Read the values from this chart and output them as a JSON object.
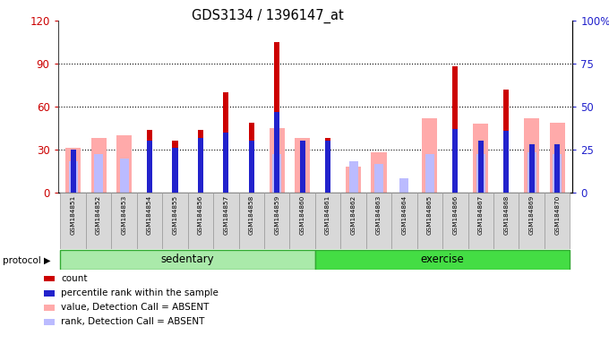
{
  "title": "GDS3134 / 1396147_at",
  "samples": [
    "GSM184851",
    "GSM184852",
    "GSM184853",
    "GSM184854",
    "GSM184855",
    "GSM184856",
    "GSM184857",
    "GSM184858",
    "GSM184859",
    "GSM184860",
    "GSM184861",
    "GSM184862",
    "GSM184863",
    "GSM184864",
    "GSM184865",
    "GSM184866",
    "GSM184867",
    "GSM184868",
    "GSM184869",
    "GSM184870"
  ],
  "count": [
    0,
    0,
    0,
    44,
    36,
    44,
    70,
    49,
    105,
    0,
    38,
    0,
    0,
    0,
    0,
    88,
    0,
    72,
    0,
    0
  ],
  "percentile_rank": [
    25,
    0,
    0,
    30,
    26,
    32,
    35,
    30,
    47,
    30,
    30,
    0,
    0,
    0,
    0,
    37,
    30,
    36,
    28,
    28
  ],
  "value_absent": [
    31,
    38,
    40,
    0,
    0,
    0,
    0,
    0,
    45,
    38,
    0,
    18,
    28,
    0,
    52,
    0,
    48,
    0,
    52,
    49
  ],
  "rank_absent": [
    22,
    27,
    24,
    0,
    0,
    0,
    0,
    0,
    27,
    0,
    0,
    22,
    20,
    10,
    27,
    0,
    27,
    0,
    28,
    27
  ],
  "ylim_left": [
    0,
    120
  ],
  "ylim_right": [
    0,
    100
  ],
  "yticks_left": [
    0,
    30,
    60,
    90,
    120
  ],
  "ytick_labels_left": [
    "0",
    "30",
    "60",
    "90",
    "120"
  ],
  "yticks_right": [
    0,
    25,
    50,
    75,
    100
  ],
  "ytick_labels_right": [
    "0",
    "25",
    "50",
    "75",
    "100%"
  ],
  "color_count": "#cc0000",
  "color_percentile": "#2222cc",
  "color_value_absent": "#ffaaaa",
  "color_rank_absent": "#bbbbff",
  "color_sedentary_bg": "#aaeaaa",
  "color_exercise_bg": "#44dd44",
  "protocol_label": "protocol",
  "sedentary_label": "sedentary",
  "exercise_label": "exercise"
}
